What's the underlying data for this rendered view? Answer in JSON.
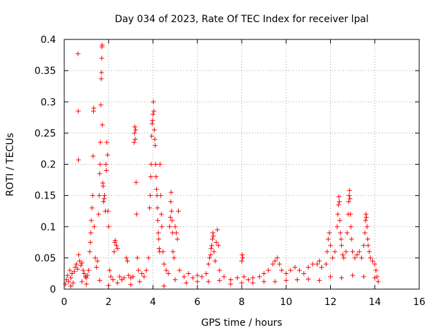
{
  "chart_data": {
    "type": "scatter",
    "title": "Day 034 of 2023, Rate Of TEC Index for receiver lpal",
    "xlabel": "GPS time / hours",
    "ylabel": "ROTI / TECUs",
    "xlim": [
      0,
      16
    ],
    "ylim": [
      0,
      0.4
    ],
    "xticks": [
      0,
      2,
      4,
      6,
      8,
      10,
      12,
      14,
      16
    ],
    "yticks": [
      0,
      0.05,
      0.1,
      0.15,
      0.2,
      0.25,
      0.3,
      0.35,
      0.4
    ],
    "xtick_labels": [
      "0",
      "2",
      "4",
      "6",
      "8",
      "10",
      "12",
      "14",
      "16"
    ],
    "ytick_labels": [
      "0",
      "0.05",
      "0.1",
      "0.15",
      "0.2",
      "0.25",
      "0.3",
      "0.35",
      "0.4"
    ],
    "grid": true,
    "marker": "+",
    "marker_color": "#ff0000",
    "series": [
      {
        "points": [
          [
            0.05,
            0.008
          ],
          [
            0.1,
            0.015
          ],
          [
            0.15,
            0.022
          ],
          [
            0.2,
            0.012
          ],
          [
            0.25,
            0.03
          ],
          [
            0.3,
            0.018
          ],
          [
            0.35,
            0.025
          ],
          [
            0.4,
            0.01
          ],
          [
            0.45,
            0.028
          ],
          [
            0.5,
            0.035
          ],
          [
            0.55,
            0.04
          ],
          [
            0.6,
            0.032
          ],
          [
            0.62,
            0.377
          ],
          [
            0.63,
            0.285
          ],
          [
            0.64,
            0.207
          ],
          [
            0.65,
            0.055
          ],
          [
            0.7,
            0.045
          ],
          [
            0.75,
            0.038
          ],
          [
            0.8,
            0.042
          ],
          [
            0.85,
            0.03
          ],
          [
            0.9,
            0.025
          ],
          [
            0.95,
            0.02
          ],
          [
            1.0,
            0.018
          ],
          [
            1.05,
            0.022
          ],
          [
            1.1,
            0.03
          ],
          [
            1.15,
            0.06
          ],
          [
            1.18,
            0.075
          ],
          [
            1.2,
            0.09
          ],
          [
            1.22,
            0.11
          ],
          [
            1.25,
            0.13
          ],
          [
            1.28,
            0.15
          ],
          [
            1.3,
            0.213
          ],
          [
            1.32,
            0.285
          ],
          [
            1.33,
            0.29
          ],
          [
            1.35,
            0.1
          ],
          [
            1.4,
            0.05
          ],
          [
            1.45,
            0.035
          ],
          [
            1.5,
            0.045
          ],
          [
            1.55,
            0.12
          ],
          [
            1.58,
            0.15
          ],
          [
            1.6,
            0.185
          ],
          [
            1.62,
            0.2
          ],
          [
            1.63,
            0.235
          ],
          [
            1.65,
            0.295
          ],
          [
            1.67,
            0.337
          ],
          [
            1.68,
            0.347
          ],
          [
            1.69,
            0.37
          ],
          [
            1.7,
            0.388
          ],
          [
            1.71,
            0.391
          ],
          [
            1.72,
            0.263
          ],
          [
            1.74,
            0.17
          ],
          [
            1.75,
            0.165
          ],
          [
            1.77,
            0.14
          ],
          [
            1.8,
            0.145
          ],
          [
            1.82,
            0.15
          ],
          [
            1.85,
            0.125
          ],
          [
            1.88,
            0.2
          ],
          [
            1.9,
            0.19
          ],
          [
            1.92,
            0.235
          ],
          [
            1.95,
            0.215
          ],
          [
            1.97,
            0.125
          ],
          [
            2.0,
            0.1
          ],
          [
            2.05,
            0.03
          ],
          [
            2.1,
            0.02
          ],
          [
            2.2,
            0.015
          ],
          [
            2.25,
            0.06
          ],
          [
            2.28,
            0.075
          ],
          [
            2.3,
            0.078
          ],
          [
            2.35,
            0.07
          ],
          [
            2.4,
            0.065
          ],
          [
            2.5,
            0.02
          ],
          [
            2.6,
            0.015
          ],
          [
            2.7,
            0.018
          ],
          [
            2.8,
            0.05
          ],
          [
            2.85,
            0.045
          ],
          [
            2.9,
            0.022
          ],
          [
            3.0,
            0.018
          ],
          [
            3.1,
            0.02
          ],
          [
            3.15,
            0.235
          ],
          [
            3.17,
            0.25
          ],
          [
            3.18,
            0.26
          ],
          [
            3.2,
            0.24
          ],
          [
            3.22,
            0.255
          ],
          [
            3.24,
            0.171
          ],
          [
            3.26,
            0.12
          ],
          [
            3.3,
            0.05
          ],
          [
            3.35,
            0.03
          ],
          [
            3.5,
            0.025
          ],
          [
            3.6,
            0.02
          ],
          [
            3.7,
            0.03
          ],
          [
            3.8,
            0.05
          ],
          [
            3.85,
            0.13
          ],
          [
            3.88,
            0.15
          ],
          [
            3.9,
            0.18
          ],
          [
            3.92,
            0.2
          ],
          [
            3.94,
            0.245
          ],
          [
            3.96,
            0.265
          ],
          [
            3.98,
            0.27
          ],
          [
            4.0,
            0.28
          ],
          [
            4.02,
            0.3
          ],
          [
            4.04,
            0.285
          ],
          [
            4.06,
            0.255
          ],
          [
            4.08,
            0.24
          ],
          [
            4.1,
            0.23
          ],
          [
            4.12,
            0.2
          ],
          [
            4.14,
            0.18
          ],
          [
            4.16,
            0.16
          ],
          [
            4.18,
            0.15
          ],
          [
            4.2,
            0.13
          ],
          [
            4.22,
            0.11
          ],
          [
            4.24,
            0.09
          ],
          [
            4.26,
            0.08
          ],
          [
            4.28,
            0.065
          ],
          [
            4.3,
            0.06
          ],
          [
            4.32,
            0.2
          ],
          [
            4.35,
            0.15
          ],
          [
            4.38,
            0.12
          ],
          [
            4.4,
            0.1
          ],
          [
            4.45,
            0.06
          ],
          [
            4.5,
            0.04
          ],
          [
            4.6,
            0.03
          ],
          [
            4.7,
            0.025
          ],
          [
            4.75,
            0.1
          ],
          [
            4.78,
            0.115
          ],
          [
            4.8,
            0.14
          ],
          [
            4.82,
            0.155
          ],
          [
            4.84,
            0.125
          ],
          [
            4.86,
            0.11
          ],
          [
            4.88,
            0.09
          ],
          [
            4.9,
            0.06
          ],
          [
            4.95,
            0.05
          ],
          [
            5.0,
            0.1
          ],
          [
            5.05,
            0.09
          ],
          [
            5.1,
            0.08
          ],
          [
            5.15,
            0.125
          ],
          [
            5.2,
            0.03
          ],
          [
            5.4,
            0.02
          ],
          [
            5.6,
            0.025
          ],
          [
            5.8,
            0.018
          ],
          [
            6.0,
            0.022
          ],
          [
            6.2,
            0.02
          ],
          [
            6.4,
            0.025
          ],
          [
            6.5,
            0.04
          ],
          [
            6.55,
            0.05
          ],
          [
            6.6,
            0.055
          ],
          [
            6.62,
            0.065
          ],
          [
            6.65,
            0.07
          ],
          [
            6.68,
            0.08
          ],
          [
            6.7,
            0.09
          ],
          [
            6.72,
            0.085
          ],
          [
            6.75,
            0.06
          ],
          [
            6.8,
            0.045
          ],
          [
            6.85,
            0.075
          ],
          [
            6.9,
            0.095
          ],
          [
            6.95,
            0.07
          ],
          [
            7.0,
            0.03
          ],
          [
            7.2,
            0.02
          ],
          [
            7.5,
            0.015
          ],
          [
            7.8,
            0.018
          ],
          [
            8.0,
            0.045
          ],
          [
            8.02,
            0.055
          ],
          [
            8.05,
            0.05
          ],
          [
            8.1,
            0.02
          ],
          [
            8.3,
            0.015
          ],
          [
            8.5,
            0.018
          ],
          [
            8.8,
            0.02
          ],
          [
            9.0,
            0.025
          ],
          [
            9.2,
            0.03
          ],
          [
            9.4,
            0.04
          ],
          [
            9.5,
            0.045
          ],
          [
            9.6,
            0.05
          ],
          [
            9.7,
            0.04
          ],
          [
            9.8,
            0.03
          ],
          [
            10.0,
            0.025
          ],
          [
            10.2,
            0.03
          ],
          [
            10.4,
            0.035
          ],
          [
            10.6,
            0.03
          ],
          [
            10.8,
            0.025
          ],
          [
            11.0,
            0.035
          ],
          [
            11.2,
            0.04
          ],
          [
            11.4,
            0.04
          ],
          [
            11.5,
            0.045
          ],
          [
            11.6,
            0.035
          ],
          [
            11.8,
            0.04
          ],
          [
            11.85,
            0.06
          ],
          [
            11.9,
            0.08
          ],
          [
            11.95,
            0.09
          ],
          [
            12.0,
            0.07
          ],
          [
            12.1,
            0.05
          ],
          [
            12.2,
            0.06
          ],
          [
            12.3,
            0.1
          ],
          [
            12.33,
            0.12
          ],
          [
            12.36,
            0.135
          ],
          [
            12.38,
            0.148
          ],
          [
            12.4,
            0.14
          ],
          [
            12.42,
            0.11
          ],
          [
            12.45,
            0.09
          ],
          [
            12.48,
            0.08
          ],
          [
            12.5,
            0.07
          ],
          [
            12.55,
            0.055
          ],
          [
            12.6,
            0.05
          ],
          [
            12.7,
            0.06
          ],
          [
            12.75,
            0.09
          ],
          [
            12.8,
            0.12
          ],
          [
            12.82,
            0.14
          ],
          [
            12.84,
            0.15
          ],
          [
            12.86,
            0.158
          ],
          [
            12.88,
            0.145
          ],
          [
            12.9,
            0.12
          ],
          [
            12.92,
            0.1
          ],
          [
            12.95,
            0.08
          ],
          [
            13.0,
            0.06
          ],
          [
            13.1,
            0.05
          ],
          [
            13.2,
            0.055
          ],
          [
            13.3,
            0.06
          ],
          [
            13.4,
            0.05
          ],
          [
            13.5,
            0.07
          ],
          [
            13.55,
            0.09
          ],
          [
            13.58,
            0.11
          ],
          [
            13.6,
            0.12
          ],
          [
            13.62,
            0.115
          ],
          [
            13.65,
            0.1
          ],
          [
            13.68,
            0.08
          ],
          [
            13.7,
            0.07
          ],
          [
            13.75,
            0.06
          ],
          [
            13.8,
            0.05
          ],
          [
            13.9,
            0.045
          ],
          [
            14.0,
            0.04
          ],
          [
            14.05,
            0.03
          ],
          [
            14.1,
            0.02
          ],
          [
            14.15,
            0.012
          ],
          [
            0.3,
            0.005
          ],
          [
            1.0,
            0.008
          ],
          [
            2.0,
            0.006
          ],
          [
            3.0,
            0.007
          ],
          [
            4.5,
            0.005
          ],
          [
            5.5,
            0.01
          ],
          [
            6.5,
            0.012
          ],
          [
            7.5,
            0.008
          ],
          [
            8.5,
            0.01
          ],
          [
            9.5,
            0.012
          ],
          [
            10.5,
            0.015
          ],
          [
            11.5,
            0.014
          ],
          [
            12.5,
            0.018
          ],
          [
            13.5,
            0.02
          ],
          [
            0.8,
            0.012
          ],
          [
            1.6,
            0.014
          ],
          [
            2.4,
            0.01
          ],
          [
            3.4,
            0.012
          ],
          [
            5.0,
            0.015
          ],
          [
            6.0,
            0.012
          ],
          [
            7.0,
            0.014
          ],
          [
            8.0,
            0.01
          ],
          [
            9.0,
            0.012
          ],
          [
            10.0,
            0.014
          ],
          [
            11.0,
            0.016
          ],
          [
            12.0,
            0.02
          ],
          [
            13.0,
            0.022
          ],
          [
            14.0,
            0.018
          ]
        ]
      }
    ]
  }
}
